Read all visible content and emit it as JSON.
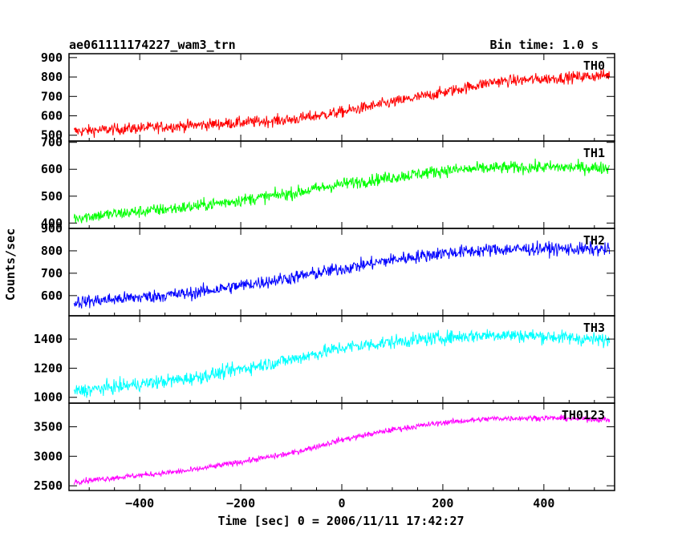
{
  "header": {
    "title": "ae061111174227_wam3_trn",
    "bin_time": "Bin time: 1.0 s"
  },
  "axes": {
    "ylabel": "Counts/sec",
    "xlabel": "Time [sec] 0 = 2006/11/11 17:42:27"
  },
  "chart_data": {
    "type": "line",
    "xlim": [
      -540,
      540
    ],
    "x_ticks": [
      -400,
      -200,
      0,
      200,
      400
    ],
    "x_tick_labels": [
      "−400",
      "−200",
      "0",
      "200",
      "400"
    ],
    "x_range": [
      -530,
      530
    ],
    "panels": [
      {
        "name": "TH0",
        "color": "#ff0000",
        "ylim": [
          470,
          920
        ],
        "y_ticks": [
          500,
          600,
          700,
          800,
          900
        ],
        "trend": [
          [
            -530,
            520
          ],
          [
            -300,
            550
          ],
          [
            -100,
            580
          ],
          [
            0,
            620
          ],
          [
            100,
            670
          ],
          [
            200,
            720
          ],
          [
            300,
            775
          ],
          [
            400,
            790
          ],
          [
            530,
            810
          ]
        ],
        "noise": 28
      },
      {
        "name": "TH1",
        "color": "#00ff00",
        "ylim": [
          380,
          705
        ],
        "y_ticks": [
          400,
          500,
          600,
          700
        ],
        "trend": [
          [
            -530,
            420
          ],
          [
            -300,
            460
          ],
          [
            -100,
            510
          ],
          [
            0,
            545
          ],
          [
            100,
            570
          ],
          [
            200,
            595
          ],
          [
            300,
            605
          ],
          [
            400,
            608
          ],
          [
            530,
            605
          ]
        ],
        "noise": 22
      },
      {
        "name": "TH2",
        "color": "#0000ff",
        "ylim": [
          510,
          900
        ],
        "y_ticks": [
          600,
          700,
          800,
          900
        ],
        "trend": [
          [
            -530,
            570
          ],
          [
            -300,
            610
          ],
          [
            -100,
            680
          ],
          [
            0,
            720
          ],
          [
            100,
            760
          ],
          [
            200,
            790
          ],
          [
            300,
            805
          ],
          [
            400,
            810
          ],
          [
            530,
            805
          ]
        ],
        "noise": 28
      },
      {
        "name": "TH3",
        "color": "#00ffff",
        "ylim": [
          960,
          1560
        ],
        "y_ticks": [
          1000,
          1200,
          1400
        ],
        "trend": [
          [
            -530,
            1040
          ],
          [
            -300,
            1130
          ],
          [
            -100,
            1260
          ],
          [
            0,
            1340
          ],
          [
            100,
            1380
          ],
          [
            200,
            1410
          ],
          [
            300,
            1430
          ],
          [
            400,
            1420
          ],
          [
            530,
            1390
          ]
        ],
        "noise": 45
      },
      {
        "name": "TH0123",
        "color": "#ff00ff",
        "ylim": [
          2420,
          3900
        ],
        "y_ticks": [
          2500,
          3000,
          3500
        ],
        "trend": [
          [
            -530,
            2570
          ],
          [
            -300,
            2760
          ],
          [
            -100,
            3050
          ],
          [
            0,
            3280
          ],
          [
            100,
            3450
          ],
          [
            200,
            3570
          ],
          [
            300,
            3640
          ],
          [
            400,
            3650
          ],
          [
            530,
            3620
          ]
        ],
        "noise": 45
      }
    ]
  }
}
